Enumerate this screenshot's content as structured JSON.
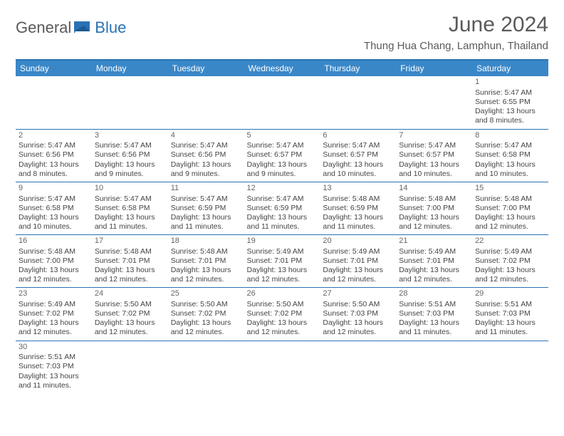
{
  "logo": {
    "part1": "General",
    "part2": "Blue"
  },
  "title": "June 2024",
  "location": "Thung Hua Chang, Lamphun, Thailand",
  "colors": {
    "header_bg": "#3a87c8",
    "border": "#2a72b5",
    "text": "#444444",
    "title_text": "#5a5a5a"
  },
  "day_headers": [
    "Sunday",
    "Monday",
    "Tuesday",
    "Wednesday",
    "Thursday",
    "Friday",
    "Saturday"
  ],
  "weeks": [
    [
      null,
      null,
      null,
      null,
      null,
      null,
      {
        "n": "1",
        "sunrise": "Sunrise: 5:47 AM",
        "sunset": "Sunset: 6:55 PM",
        "day1": "Daylight: 13 hours",
        "day2": "and 8 minutes."
      }
    ],
    [
      {
        "n": "2",
        "sunrise": "Sunrise: 5:47 AM",
        "sunset": "Sunset: 6:56 PM",
        "day1": "Daylight: 13 hours",
        "day2": "and 8 minutes."
      },
      {
        "n": "3",
        "sunrise": "Sunrise: 5:47 AM",
        "sunset": "Sunset: 6:56 PM",
        "day1": "Daylight: 13 hours",
        "day2": "and 9 minutes."
      },
      {
        "n": "4",
        "sunrise": "Sunrise: 5:47 AM",
        "sunset": "Sunset: 6:56 PM",
        "day1": "Daylight: 13 hours",
        "day2": "and 9 minutes."
      },
      {
        "n": "5",
        "sunrise": "Sunrise: 5:47 AM",
        "sunset": "Sunset: 6:57 PM",
        "day1": "Daylight: 13 hours",
        "day2": "and 9 minutes."
      },
      {
        "n": "6",
        "sunrise": "Sunrise: 5:47 AM",
        "sunset": "Sunset: 6:57 PM",
        "day1": "Daylight: 13 hours",
        "day2": "and 10 minutes."
      },
      {
        "n": "7",
        "sunrise": "Sunrise: 5:47 AM",
        "sunset": "Sunset: 6:57 PM",
        "day1": "Daylight: 13 hours",
        "day2": "and 10 minutes."
      },
      {
        "n": "8",
        "sunrise": "Sunrise: 5:47 AM",
        "sunset": "Sunset: 6:58 PM",
        "day1": "Daylight: 13 hours",
        "day2": "and 10 minutes."
      }
    ],
    [
      {
        "n": "9",
        "sunrise": "Sunrise: 5:47 AM",
        "sunset": "Sunset: 6:58 PM",
        "day1": "Daylight: 13 hours",
        "day2": "and 10 minutes."
      },
      {
        "n": "10",
        "sunrise": "Sunrise: 5:47 AM",
        "sunset": "Sunset: 6:58 PM",
        "day1": "Daylight: 13 hours",
        "day2": "and 11 minutes."
      },
      {
        "n": "11",
        "sunrise": "Sunrise: 5:47 AM",
        "sunset": "Sunset: 6:59 PM",
        "day1": "Daylight: 13 hours",
        "day2": "and 11 minutes."
      },
      {
        "n": "12",
        "sunrise": "Sunrise: 5:47 AM",
        "sunset": "Sunset: 6:59 PM",
        "day1": "Daylight: 13 hours",
        "day2": "and 11 minutes."
      },
      {
        "n": "13",
        "sunrise": "Sunrise: 5:48 AM",
        "sunset": "Sunset: 6:59 PM",
        "day1": "Daylight: 13 hours",
        "day2": "and 11 minutes."
      },
      {
        "n": "14",
        "sunrise": "Sunrise: 5:48 AM",
        "sunset": "Sunset: 7:00 PM",
        "day1": "Daylight: 13 hours",
        "day2": "and 12 minutes."
      },
      {
        "n": "15",
        "sunrise": "Sunrise: 5:48 AM",
        "sunset": "Sunset: 7:00 PM",
        "day1": "Daylight: 13 hours",
        "day2": "and 12 minutes."
      }
    ],
    [
      {
        "n": "16",
        "sunrise": "Sunrise: 5:48 AM",
        "sunset": "Sunset: 7:00 PM",
        "day1": "Daylight: 13 hours",
        "day2": "and 12 minutes."
      },
      {
        "n": "17",
        "sunrise": "Sunrise: 5:48 AM",
        "sunset": "Sunset: 7:01 PM",
        "day1": "Daylight: 13 hours",
        "day2": "and 12 minutes."
      },
      {
        "n": "18",
        "sunrise": "Sunrise: 5:48 AM",
        "sunset": "Sunset: 7:01 PM",
        "day1": "Daylight: 13 hours",
        "day2": "and 12 minutes."
      },
      {
        "n": "19",
        "sunrise": "Sunrise: 5:49 AM",
        "sunset": "Sunset: 7:01 PM",
        "day1": "Daylight: 13 hours",
        "day2": "and 12 minutes."
      },
      {
        "n": "20",
        "sunrise": "Sunrise: 5:49 AM",
        "sunset": "Sunset: 7:01 PM",
        "day1": "Daylight: 13 hours",
        "day2": "and 12 minutes."
      },
      {
        "n": "21",
        "sunrise": "Sunrise: 5:49 AM",
        "sunset": "Sunset: 7:01 PM",
        "day1": "Daylight: 13 hours",
        "day2": "and 12 minutes."
      },
      {
        "n": "22",
        "sunrise": "Sunrise: 5:49 AM",
        "sunset": "Sunset: 7:02 PM",
        "day1": "Daylight: 13 hours",
        "day2": "and 12 minutes."
      }
    ],
    [
      {
        "n": "23",
        "sunrise": "Sunrise: 5:49 AM",
        "sunset": "Sunset: 7:02 PM",
        "day1": "Daylight: 13 hours",
        "day2": "and 12 minutes."
      },
      {
        "n": "24",
        "sunrise": "Sunrise: 5:50 AM",
        "sunset": "Sunset: 7:02 PM",
        "day1": "Daylight: 13 hours",
        "day2": "and 12 minutes."
      },
      {
        "n": "25",
        "sunrise": "Sunrise: 5:50 AM",
        "sunset": "Sunset: 7:02 PM",
        "day1": "Daylight: 13 hours",
        "day2": "and 12 minutes."
      },
      {
        "n": "26",
        "sunrise": "Sunrise: 5:50 AM",
        "sunset": "Sunset: 7:02 PM",
        "day1": "Daylight: 13 hours",
        "day2": "and 12 minutes."
      },
      {
        "n": "27",
        "sunrise": "Sunrise: 5:50 AM",
        "sunset": "Sunset: 7:03 PM",
        "day1": "Daylight: 13 hours",
        "day2": "and 12 minutes."
      },
      {
        "n": "28",
        "sunrise": "Sunrise: 5:51 AM",
        "sunset": "Sunset: 7:03 PM",
        "day1": "Daylight: 13 hours",
        "day2": "and 11 minutes."
      },
      {
        "n": "29",
        "sunrise": "Sunrise: 5:51 AM",
        "sunset": "Sunset: 7:03 PM",
        "day1": "Daylight: 13 hours",
        "day2": "and 11 minutes."
      }
    ],
    [
      {
        "n": "30",
        "sunrise": "Sunrise: 5:51 AM",
        "sunset": "Sunset: 7:03 PM",
        "day1": "Daylight: 13 hours",
        "day2": "and 11 minutes."
      },
      null,
      null,
      null,
      null,
      null,
      null
    ]
  ]
}
